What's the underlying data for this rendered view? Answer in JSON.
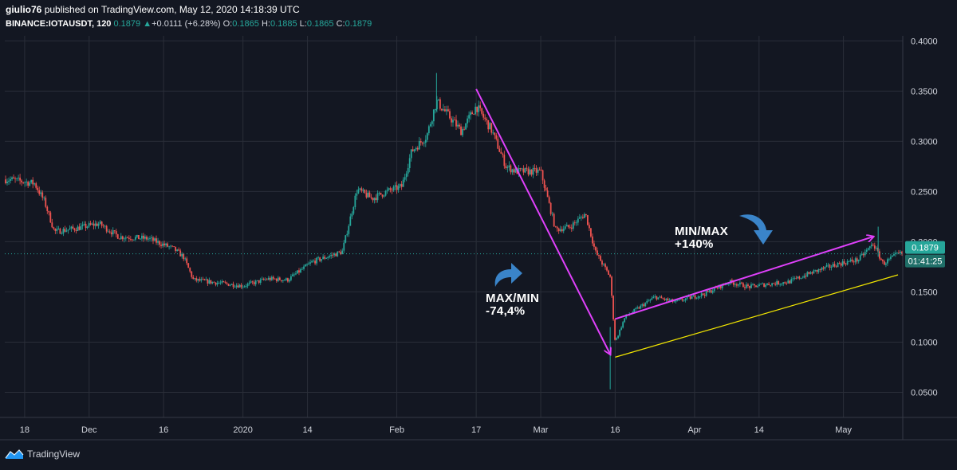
{
  "header": {
    "author": "giulio76",
    "published_text": "published on TradingView.com, May 12, 2020 14:18:39 UTC",
    "symbol": "BINANCE:IOTAUSDT, 120",
    "last": "0.1879",
    "change": "+0.0111 (+6.28%)",
    "o_label": "O:",
    "o_value": "0.1865",
    "h_label": "H:",
    "h_value": "0.1885",
    "l_label": "L:",
    "l_value": "0.1865",
    "c_label": "C:",
    "c_value": "0.1879"
  },
  "footer": {
    "brand": "TradingView"
  },
  "annotations": {
    "maxmin_title": "MAX/MIN",
    "maxmin_value": "-74,4%",
    "minmax_title": "MIN/MAX",
    "minmax_value": "+140%"
  },
  "colors": {
    "background": "#131722",
    "grid": "#2a2e39",
    "up": "#26a69a",
    "down": "#ef5350",
    "arrow": "#e040fb",
    "trendline": "#f2e600",
    "annotation_icon": "#3a84c9"
  },
  "chart_data": {
    "type": "candlestick",
    "y_ticks": [
      "0.0500",
      "0.1000",
      "0.1500",
      "0.2000",
      "0.2500",
      "0.3000",
      "0.3500",
      "0.4000"
    ],
    "ylim": [
      0.025,
      0.405
    ],
    "x_ticks": [
      "18",
      "Dec",
      "16",
      "2020",
      "14",
      "Feb",
      "17",
      "Mar",
      "16",
      "Apr",
      "14",
      "May"
    ],
    "price_label": "0.1879",
    "countdown_label": "01:41:25",
    "close_path": [
      [
        "2019-11-15",
        0.262
      ],
      [
        "2019-11-20",
        0.258
      ],
      [
        "2019-11-22",
        0.24
      ],
      [
        "2019-11-24",
        0.21
      ],
      [
        "2019-11-28",
        0.213
      ],
      [
        "2019-12-03",
        0.218
      ],
      [
        "2019-12-07",
        0.205
      ],
      [
        "2019-12-13",
        0.203
      ],
      [
        "2019-12-18",
        0.193
      ],
      [
        "2019-12-20",
        0.185
      ],
      [
        "2019-12-22",
        0.162
      ],
      [
        "2019-12-27",
        0.159
      ],
      [
        "2020-01-01",
        0.156
      ],
      [
        "2020-01-06",
        0.163
      ],
      [
        "2020-01-10",
        0.162
      ],
      [
        "2020-01-15",
        0.18
      ],
      [
        "2020-01-18",
        0.185
      ],
      [
        "2020-01-21",
        0.19
      ],
      [
        "2020-01-24",
        0.252
      ],
      [
        "2020-01-27",
        0.243
      ],
      [
        "2020-01-30",
        0.25
      ],
      [
        "2020-02-02",
        0.255
      ],
      [
        "2020-02-04",
        0.29
      ],
      [
        "2020-02-07",
        0.305
      ],
      [
        "2020-02-09",
        0.34
      ],
      [
        "2020-02-11",
        0.328
      ],
      [
        "2020-02-14",
        0.31
      ],
      [
        "2020-02-17",
        0.335
      ],
      [
        "2020-02-20",
        0.312
      ],
      [
        "2020-02-23",
        0.275
      ],
      [
        "2020-02-25",
        0.27
      ],
      [
        "2020-03-01",
        0.27
      ],
      [
        "2020-03-04",
        0.212
      ],
      [
        "2020-03-07",
        0.215
      ],
      [
        "2020-03-10",
        0.228
      ],
      [
        "2020-03-12",
        0.19
      ],
      [
        "2020-03-15",
        0.165
      ],
      [
        "2020-03-16",
        0.1
      ],
      [
        "2020-03-18",
        0.125
      ],
      [
        "2020-03-21",
        0.135
      ],
      [
        "2020-03-24",
        0.145
      ],
      [
        "2020-03-28",
        0.14
      ],
      [
        "2020-04-03",
        0.148
      ],
      [
        "2020-04-08",
        0.16
      ],
      [
        "2020-04-12",
        0.155
      ],
      [
        "2020-04-16",
        0.158
      ],
      [
        "2020-04-20",
        0.16
      ],
      [
        "2020-04-25",
        0.17
      ],
      [
        "2020-04-30",
        0.178
      ],
      [
        "2020-05-04",
        0.182
      ],
      [
        "2020-05-07",
        0.198
      ],
      [
        "2020-05-09",
        0.178
      ],
      [
        "2020-05-12",
        0.1879
      ]
    ],
    "annotation_lines": [
      {
        "name": "decline-arrow",
        "from": [
          "2020-02-17",
          0.352
        ],
        "to": [
          "2020-03-15",
          0.088
        ]
      },
      {
        "name": "recovery-arrow",
        "from": [
          "2020-03-16",
          0.123
        ],
        "to": [
          "2020-05-07",
          0.205
        ]
      },
      {
        "name": "support-trendline",
        "from": [
          "2020-03-16",
          0.085
        ],
        "to": [
          "2020-05-12",
          0.167
        ]
      }
    ]
  }
}
